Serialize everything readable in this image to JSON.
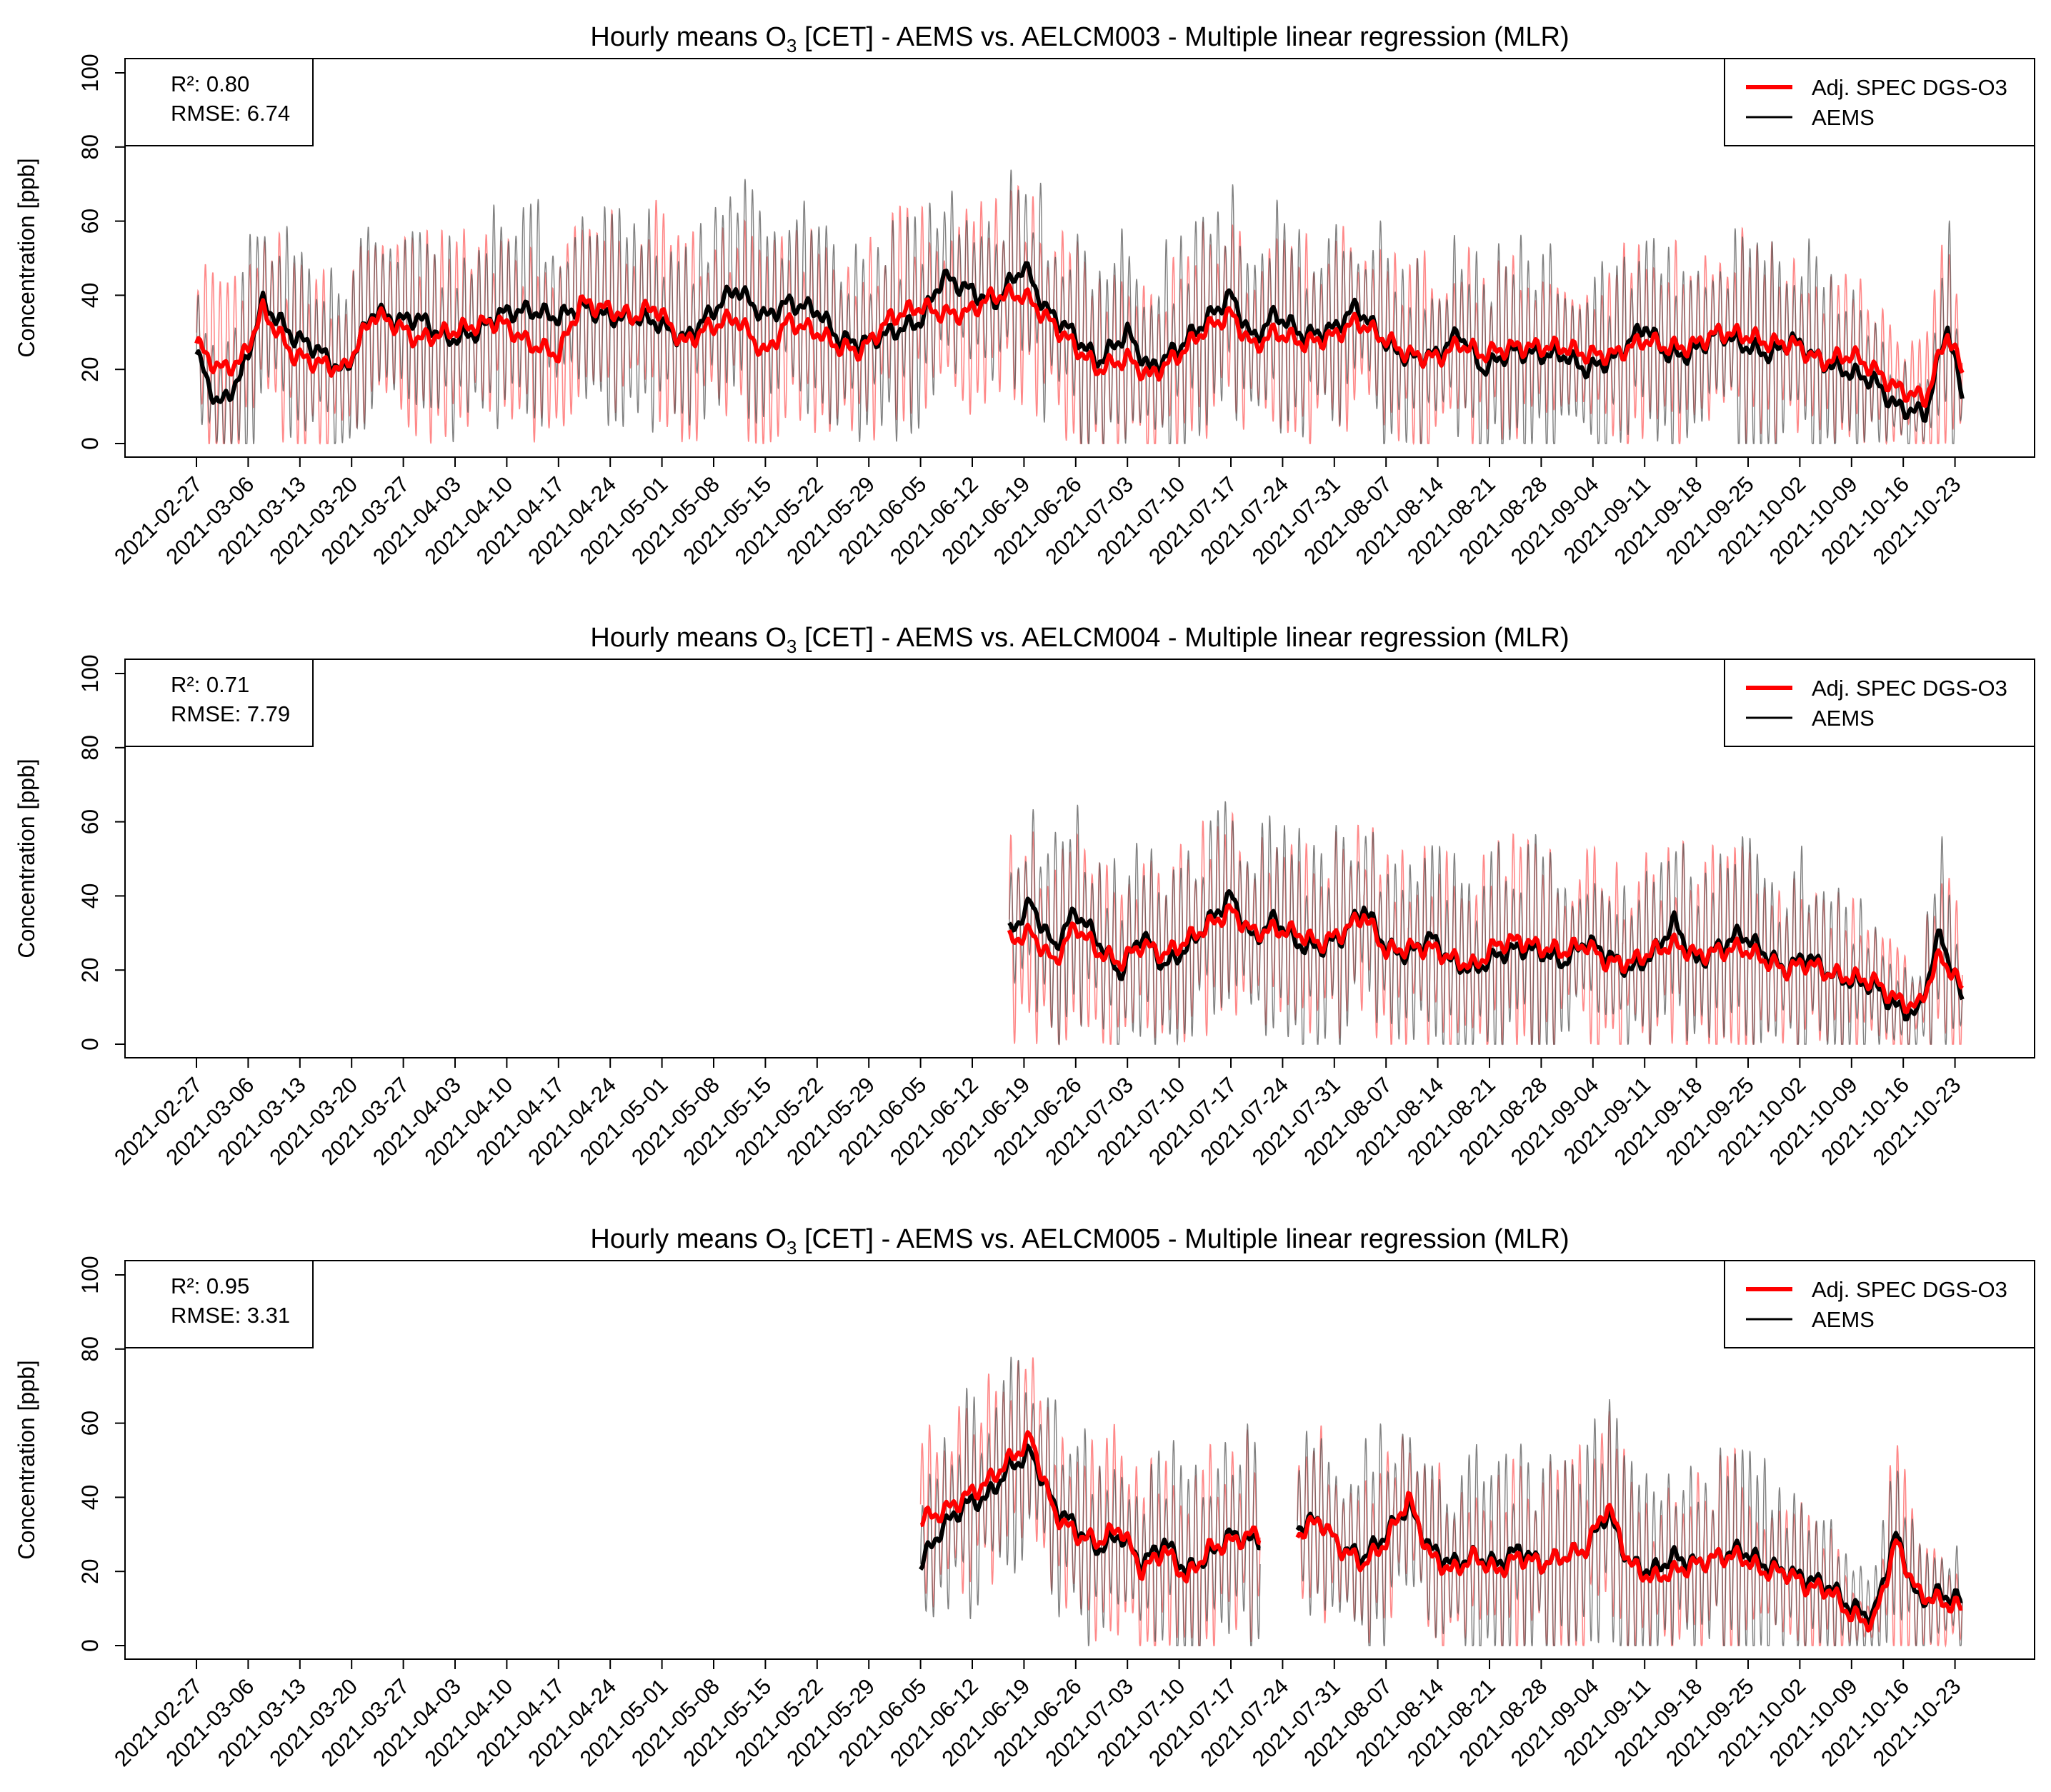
{
  "chart_data": [
    {
      "type": "line",
      "title": {
        "pre": "Hourly means O",
        "sub": "3",
        "post": " [CET] - AEMS vs. AELCM003 - Multiple linear regression (MLR)"
      },
      "ylabel": "Concentration [ppb]",
      "ylim": [
        0,
        100
      ],
      "yticks": [
        "0",
        "20",
        "40",
        "60",
        "80",
        "100"
      ],
      "x_start_day": 0,
      "x_end_day": 239,
      "stats": {
        "r2": "R²: 0.80",
        "rmse": "RMSE: 6.74"
      },
      "legend": {
        "position": "top-right",
        "entries": [
          "Adj. SPEC DGS-O3",
          "AEMS"
        ]
      },
      "data_start_day": 0,
      "data_end_day": 239,
      "series": [
        {
          "name": "AEMS",
          "color": "#000000",
          "x_days": [
            0,
            3,
            6,
            9,
            13,
            16,
            20,
            24,
            27,
            30,
            34,
            38,
            41,
            45,
            49,
            52,
            56,
            59,
            62,
            66,
            69,
            73,
            77,
            80,
            84,
            87,
            90,
            94,
            98,
            101,
            104,
            108,
            112,
            115,
            118,
            122,
            126,
            129,
            133,
            136,
            140,
            143,
            146,
            150,
            154,
            157,
            161,
            164,
            168,
            171,
            174,
            178,
            182,
            185,
            188,
            192,
            196,
            199,
            202,
            206,
            210,
            213,
            216,
            220,
            224,
            227,
            230,
            234,
            237,
            239
          ],
          "values": [
            24,
            10,
            18,
            38,
            29,
            26,
            19,
            36,
            33,
            34,
            28,
            30,
            35,
            36,
            34,
            37,
            34,
            34,
            33,
            28,
            34,
            42,
            34,
            38,
            36,
            28,
            27,
            30,
            33,
            45,
            42,
            38,
            48,
            36,
            31,
            22,
            30,
            20,
            26,
            32,
            40,
            28,
            35,
            29,
            31,
            37,
            27,
            23,
            24,
            30,
            20,
            25,
            24,
            24,
            20,
            23,
            32,
            24,
            24,
            30,
            26,
            24,
            28,
            22,
            19,
            17,
            10,
            8,
            32,
            12
          ]
        },
        {
          "name": "Adj. SPEC DGS-O3",
          "color": "#ff0000",
          "x_days": [
            0,
            3,
            6,
            9,
            13,
            16,
            20,
            24,
            27,
            30,
            34,
            38,
            41,
            45,
            49,
            52,
            56,
            59,
            62,
            66,
            69,
            73,
            77,
            80,
            84,
            87,
            90,
            94,
            98,
            101,
            104,
            108,
            112,
            115,
            118,
            122,
            126,
            129,
            133,
            136,
            140,
            143,
            146,
            150,
            154,
            157,
            161,
            164,
            168,
            171,
            174,
            178,
            182,
            185,
            188,
            192,
            196,
            199,
            202,
            206,
            210,
            213,
            216,
            220,
            224,
            227,
            230,
            234,
            237,
            239
          ],
          "values": [
            27,
            20,
            22,
            36,
            24,
            22,
            20,
            35,
            32,
            28,
            30,
            32,
            33,
            27,
            24,
            38,
            36,
            34,
            37,
            27,
            31,
            34,
            24,
            33,
            30,
            26,
            25,
            34,
            37,
            35,
            35,
            40,
            40,
            34,
            28,
            20,
            23,
            18,
            24,
            30,
            35,
            26,
            30,
            27,
            29,
            33,
            28,
            24,
            23,
            27,
            24,
            26,
            26,
            26,
            24,
            24,
            28,
            26,
            26,
            30,
            29,
            27,
            27,
            22,
            24,
            20,
            15,
            12,
            30,
            19
          ]
        }
      ]
    },
    {
      "type": "line",
      "title": {
        "pre": "Hourly means O",
        "sub": "3",
        "post": " [CET] - AEMS vs. AELCM004 - Multiple linear regression (MLR)"
      },
      "ylabel": "Concentration [ppb]",
      "ylim": [
        0,
        100
      ],
      "yticks": [
        "0",
        "20",
        "40",
        "60",
        "80",
        "100"
      ],
      "x_start_day": 0,
      "x_end_day": 239,
      "stats": {
        "r2": "R²: 0.71",
        "rmse": "RMSE: 7.79"
      },
      "legend": {
        "position": "top-right",
        "entries": [
          "Adj. SPEC DGS-O3",
          "AEMS"
        ]
      },
      "data_start_day": 110,
      "data_end_day": 239,
      "series": [
        {
          "name": "AEMS",
          "color": "#000000",
          "x_days": [
            110,
            113,
            116,
            119,
            122,
            125,
            128,
            131,
            134,
            137,
            140,
            143,
            146,
            149,
            152,
            155,
            158,
            161,
            164,
            167,
            170,
            173,
            176,
            179,
            182,
            185,
            188,
            191,
            194,
            197,
            200,
            203,
            206,
            209,
            212,
            215,
            218,
            221,
            224,
            227,
            230,
            233,
            236,
            239
          ],
          "values": [
            30,
            38,
            26,
            36,
            28,
            19,
            30,
            21,
            26,
            33,
            40,
            28,
            34,
            27,
            26,
            29,
            37,
            26,
            24,
            29,
            22,
            20,
            24,
            26,
            25,
            22,
            28,
            24,
            20,
            24,
            33,
            22,
            26,
            30,
            25,
            20,
            24,
            19,
            17,
            16,
            10,
            8,
            30,
            12
          ]
        },
        {
          "name": "Adj. SPEC DGS-O3",
          "color": "#ff0000",
          "x_days": [
            110,
            113,
            116,
            119,
            122,
            125,
            128,
            131,
            134,
            137,
            140,
            143,
            146,
            149,
            152,
            155,
            158,
            161,
            164,
            167,
            170,
            173,
            176,
            179,
            182,
            185,
            188,
            191,
            194,
            197,
            200,
            203,
            206,
            209,
            212,
            215,
            218,
            221,
            224,
            227,
            230,
            233,
            236,
            239
          ],
          "values": [
            28,
            30,
            22,
            32,
            25,
            22,
            27,
            24,
            28,
            32,
            36,
            30,
            31,
            30,
            27,
            30,
            35,
            25,
            26,
            26,
            23,
            21,
            27,
            28,
            26,
            25,
            27,
            22,
            22,
            25,
            27,
            24,
            25,
            26,
            23,
            20,
            22,
            19,
            18,
            17,
            12,
            10,
            24,
            15
          ]
        }
      ]
    },
    {
      "type": "line",
      "title": {
        "pre": "Hourly means O",
        "sub": "3",
        "post": " [CET] - AEMS vs. AELCM005 - Multiple linear regression (MLR)"
      },
      "ylabel": "Concentration [ppb]",
      "ylim": [
        0,
        100
      ],
      "yticks": [
        "0",
        "20",
        "40",
        "60",
        "80",
        "100"
      ],
      "x_start_day": 0,
      "x_end_day": 239,
      "stats": {
        "r2": "R²: 0.95",
        "rmse": "RMSE: 3.31"
      },
      "legend": {
        "position": "top-right",
        "entries": [
          "Adj. SPEC DGS-O3",
          "AEMS"
        ]
      },
      "data_start_day": 98,
      "data_end_day": 239,
      "gaps": [
        [
          144,
          149
        ]
      ],
      "series": [
        {
          "name": "AEMS",
          "color": "#000000",
          "x_days": [
            98,
            101,
            104,
            107,
            110,
            113,
            116,
            119,
            122,
            125,
            128,
            131,
            134,
            137,
            140,
            143,
            149,
            152,
            155,
            158,
            161,
            164,
            167,
            170,
            173,
            176,
            179,
            182,
            185,
            188,
            191,
            194,
            197,
            200,
            203,
            206,
            209,
            212,
            215,
            218,
            221,
            224,
            227,
            230,
            233,
            236,
            239
          ],
          "values": [
            22,
            32,
            38,
            40,
            48,
            52,
            38,
            32,
            26,
            30,
            22,
            28,
            20,
            24,
            30,
            28,
            32,
            34,
            26,
            24,
            30,
            38,
            26,
            22,
            24,
            22,
            26,
            22,
            24,
            26,
            36,
            22,
            20,
            24,
            22,
            24,
            26,
            22,
            20,
            18,
            16,
            10,
            8,
            30,
            12,
            14,
            12
          ]
        },
        {
          "name": "Adj. SPEC DGS-O3",
          "color": "#ff0000",
          "x_days": [
            98,
            101,
            104,
            107,
            110,
            113,
            116,
            119,
            122,
            125,
            128,
            131,
            134,
            137,
            140,
            143,
            149,
            152,
            155,
            158,
            161,
            164,
            167,
            170,
            173,
            176,
            179,
            182,
            185,
            188,
            191,
            194,
            197,
            200,
            203,
            206,
            209,
            212,
            215,
            218,
            221,
            224,
            227,
            230,
            233,
            236,
            239
          ],
          "values": [
            34,
            36,
            40,
            44,
            50,
            56,
            36,
            30,
            28,
            32,
            20,
            26,
            18,
            26,
            28,
            30,
            30,
            34,
            26,
            22,
            28,
            40,
            24,
            20,
            24,
            20,
            24,
            22,
            24,
            26,
            38,
            22,
            18,
            20,
            22,
            24,
            24,
            20,
            20,
            16,
            15,
            8,
            6,
            28,
            14,
            12,
            10
          ]
        }
      ]
    }
  ],
  "x_tick_labels": [
    "2021-02-27",
    "2021-03-06",
    "2021-03-13",
    "2021-03-20",
    "2021-03-27",
    "2021-04-03",
    "2021-04-10",
    "2021-04-17",
    "2021-04-24",
    "2021-05-01",
    "2021-05-08",
    "2021-05-15",
    "2021-05-22",
    "2021-05-29",
    "2021-06-05",
    "2021-06-12",
    "2021-06-19",
    "2021-06-26",
    "2021-07-03",
    "2021-07-10",
    "2021-07-17",
    "2021-07-24",
    "2021-07-31",
    "2021-08-07",
    "2021-08-14",
    "2021-08-21",
    "2021-08-28",
    "2021-09-04",
    "2021-09-11",
    "2021-09-18",
    "2021-09-25",
    "2021-10-02",
    "2021-10-09",
    "2021-10-16",
    "2021-10-23"
  ],
  "colors": {
    "aems": "#000000",
    "spec": "#ff0000",
    "aems_raw": "#555555",
    "spec_raw": "#ff6a6a"
  }
}
